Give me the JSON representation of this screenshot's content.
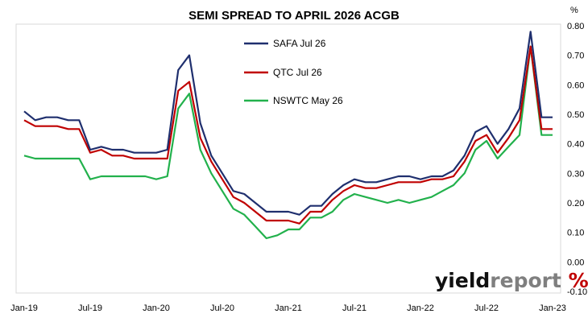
{
  "chart_data": {
    "type": "line",
    "title": "SEMI SPREAD TO APRIL 2026 ACGB",
    "unit_label": "%",
    "xlabel": "",
    "ylabel": "",
    "ylim": [
      -0.1,
      0.8
    ],
    "y_ticks": [
      "0.80",
      "0.70",
      "0.60",
      "0.50",
      "0.40",
      "0.30",
      "0.20",
      "0.10",
      "0.00",
      "-0.10"
    ],
    "x_ticks": [
      "Jan-19",
      "Jul-19",
      "Jan-20",
      "Jul-20",
      "Jan-21",
      "Jul-21",
      "Jan-22",
      "Jul-22",
      "Jan-23"
    ],
    "xlim": [
      "2019-01",
      "2023-01"
    ],
    "grid": false,
    "legend_position": "top-center",
    "series": [
      {
        "name": "SAFA Jul 26",
        "color": "#1f2f6e",
        "points": [
          [
            "2019-01",
            0.51
          ],
          [
            "2019-02",
            0.48
          ],
          [
            "2019-03",
            0.49
          ],
          [
            "2019-04",
            0.49
          ],
          [
            "2019-05",
            0.48
          ],
          [
            "2019-06",
            0.48
          ],
          [
            "2019-07",
            0.38
          ],
          [
            "2019-08",
            0.39
          ],
          [
            "2019-09",
            0.38
          ],
          [
            "2019-10",
            0.38
          ],
          [
            "2019-11",
            0.37
          ],
          [
            "2019-12",
            0.37
          ],
          [
            "2020-01",
            0.37
          ],
          [
            "2020-02",
            0.38
          ],
          [
            "2020-03",
            0.65
          ],
          [
            "2020-04",
            0.7
          ],
          [
            "2020-05",
            0.47
          ],
          [
            "2020-06",
            0.36
          ],
          [
            "2020-07",
            0.3
          ],
          [
            "2020-08",
            0.24
          ],
          [
            "2020-09",
            0.23
          ],
          [
            "2020-10",
            0.2
          ],
          [
            "2020-11",
            0.17
          ],
          [
            "2020-12",
            0.17
          ],
          [
            "2021-01",
            0.17
          ],
          [
            "2021-02",
            0.16
          ],
          [
            "2021-03",
            0.19
          ],
          [
            "2021-04",
            0.19
          ],
          [
            "2021-05",
            0.23
          ],
          [
            "2021-06",
            0.26
          ],
          [
            "2021-07",
            0.28
          ],
          [
            "2021-08",
            0.27
          ],
          [
            "2021-09",
            0.27
          ],
          [
            "2021-10",
            0.28
          ],
          [
            "2021-11",
            0.29
          ],
          [
            "2021-12",
            0.29
          ],
          [
            "2022-01",
            0.28
          ],
          [
            "2022-02",
            0.29
          ],
          [
            "2022-03",
            0.29
          ],
          [
            "2022-04",
            0.31
          ],
          [
            "2022-05",
            0.36
          ],
          [
            "2022-06",
            0.44
          ],
          [
            "2022-07",
            0.46
          ],
          [
            "2022-08",
            0.4
          ],
          [
            "2022-09",
            0.45
          ],
          [
            "2022-10",
            0.52
          ],
          [
            "2022-11",
            0.78
          ],
          [
            "2022-12",
            0.49
          ],
          [
            "2023-01",
            0.49
          ]
        ]
      },
      {
        "name": "QTC Jul 26",
        "color": "#c00000",
        "points": [
          [
            "2019-01",
            0.48
          ],
          [
            "2019-02",
            0.46
          ],
          [
            "2019-03",
            0.46
          ],
          [
            "2019-04",
            0.46
          ],
          [
            "2019-05",
            0.45
          ],
          [
            "2019-06",
            0.45
          ],
          [
            "2019-07",
            0.37
          ],
          [
            "2019-08",
            0.38
          ],
          [
            "2019-09",
            0.36
          ],
          [
            "2019-10",
            0.36
          ],
          [
            "2019-11",
            0.35
          ],
          [
            "2019-12",
            0.35
          ],
          [
            "2020-01",
            0.35
          ],
          [
            "2020-02",
            0.35
          ],
          [
            "2020-03",
            0.58
          ],
          [
            "2020-04",
            0.61
          ],
          [
            "2020-05",
            0.42
          ],
          [
            "2020-06",
            0.34
          ],
          [
            "2020-07",
            0.28
          ],
          [
            "2020-08",
            0.22
          ],
          [
            "2020-09",
            0.2
          ],
          [
            "2020-10",
            0.17
          ],
          [
            "2020-11",
            0.14
          ],
          [
            "2020-12",
            0.14
          ],
          [
            "2021-01",
            0.14
          ],
          [
            "2021-02",
            0.13
          ],
          [
            "2021-03",
            0.17
          ],
          [
            "2021-04",
            0.17
          ],
          [
            "2021-05",
            0.21
          ],
          [
            "2021-06",
            0.24
          ],
          [
            "2021-07",
            0.26
          ],
          [
            "2021-08",
            0.25
          ],
          [
            "2021-09",
            0.25
          ],
          [
            "2021-10",
            0.26
          ],
          [
            "2021-11",
            0.27
          ],
          [
            "2021-12",
            0.27
          ],
          [
            "2022-01",
            0.27
          ],
          [
            "2022-02",
            0.28
          ],
          [
            "2022-03",
            0.28
          ],
          [
            "2022-04",
            0.29
          ],
          [
            "2022-05",
            0.34
          ],
          [
            "2022-06",
            0.41
          ],
          [
            "2022-07",
            0.43
          ],
          [
            "2022-08",
            0.37
          ],
          [
            "2022-09",
            0.42
          ],
          [
            "2022-10",
            0.48
          ],
          [
            "2022-11",
            0.73
          ],
          [
            "2022-12",
            0.45
          ],
          [
            "2023-01",
            0.45
          ]
        ]
      },
      {
        "name": "NSWTC May 26",
        "color": "#22b14c",
        "points": [
          [
            "2019-01",
            0.36
          ],
          [
            "2019-02",
            0.35
          ],
          [
            "2019-03",
            0.35
          ],
          [
            "2019-04",
            0.35
          ],
          [
            "2019-05",
            0.35
          ],
          [
            "2019-06",
            0.35
          ],
          [
            "2019-07",
            0.28
          ],
          [
            "2019-08",
            0.29
          ],
          [
            "2019-09",
            0.29
          ],
          [
            "2019-10",
            0.29
          ],
          [
            "2019-11",
            0.29
          ],
          [
            "2019-12",
            0.29
          ],
          [
            "2020-01",
            0.28
          ],
          [
            "2020-02",
            0.29
          ],
          [
            "2020-03",
            0.52
          ],
          [
            "2020-04",
            0.57
          ],
          [
            "2020-05",
            0.38
          ],
          [
            "2020-06",
            0.3
          ],
          [
            "2020-07",
            0.24
          ],
          [
            "2020-08",
            0.18
          ],
          [
            "2020-09",
            0.16
          ],
          [
            "2020-10",
            0.12
          ],
          [
            "2020-11",
            0.08
          ],
          [
            "2020-12",
            0.09
          ],
          [
            "2021-01",
            0.11
          ],
          [
            "2021-02",
            0.11
          ],
          [
            "2021-03",
            0.15
          ],
          [
            "2021-04",
            0.15
          ],
          [
            "2021-05",
            0.17
          ],
          [
            "2021-06",
            0.21
          ],
          [
            "2021-07",
            0.23
          ],
          [
            "2021-08",
            0.22
          ],
          [
            "2021-09",
            0.21
          ],
          [
            "2021-10",
            0.2
          ],
          [
            "2021-11",
            0.21
          ],
          [
            "2021-12",
            0.2
          ],
          [
            "2022-01",
            0.21
          ],
          [
            "2022-02",
            0.22
          ],
          [
            "2022-03",
            0.24
          ],
          [
            "2022-04",
            0.26
          ],
          [
            "2022-05",
            0.3
          ],
          [
            "2022-06",
            0.38
          ],
          [
            "2022-07",
            0.41
          ],
          [
            "2022-08",
            0.35
          ],
          [
            "2022-09",
            0.39
          ],
          [
            "2022-10",
            0.43
          ],
          [
            "2022-11",
            0.73
          ],
          [
            "2022-12",
            0.43
          ],
          [
            "2023-01",
            0.43
          ]
        ]
      }
    ]
  },
  "watermark": {
    "text_main": "yield",
    "text_accent": "report",
    "symbol": "%",
    "color_main": "#111111",
    "color_accent": "#7f7f7f",
    "symbol_color": "#c00000"
  }
}
